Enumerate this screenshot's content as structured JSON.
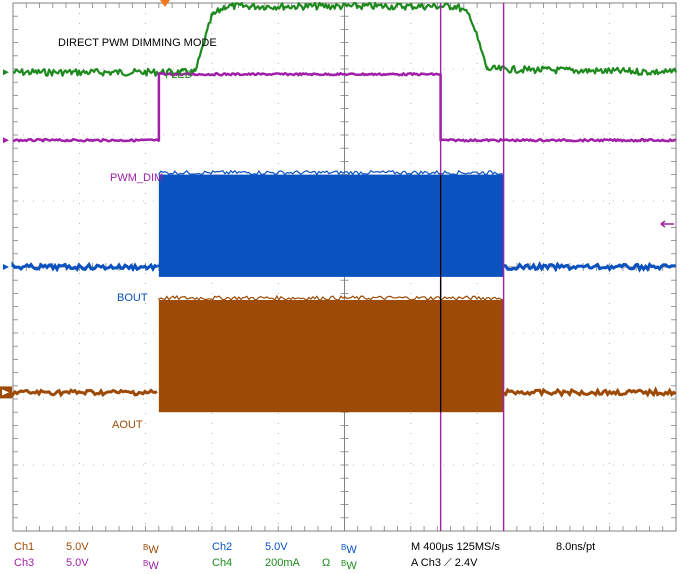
{
  "chart_data": {
    "type": "line",
    "title": "DIRECT PWM DIMMING MODE",
    "x_divisions": 10,
    "y_divisions": 8,
    "grid": true,
    "series": [
      {
        "name": "I LED",
        "channel": "Ch4",
        "color": "#1e8a1e",
        "baseline_div": 2.95,
        "x": [
          0,
          2.75,
          3.0,
          3.2,
          6.7,
          6.9,
          7.15,
          10
        ],
        "y": [
          0,
          0,
          0.85,
          1.0,
          1.0,
          0.85,
          0.05,
          0
        ]
      },
      {
        "name": "PWM_DIM",
        "channel": "Ch3",
        "color": "#a020a8",
        "baseline_div": 1.92,
        "x": [
          0,
          2.2,
          2.2,
          6.45,
          6.45,
          10
        ],
        "y": [
          0,
          0,
          1.0,
          1.0,
          0,
          0
        ]
      },
      {
        "name": "BOUT",
        "channel": "Ch2",
        "color": "#0a52c0",
        "baseline_div": 0.0,
        "band_div": [
          -0.15,
          1.4
        ],
        "x": [
          0,
          2.2,
          2.2,
          7.4,
          7.4,
          10
        ],
        "band": [
          false,
          false,
          true,
          true,
          false,
          false
        ]
      },
      {
        "name": "AOUT",
        "channel": "Ch1",
        "color": "#9c4a06",
        "baseline_div": -1.9,
        "band_div": [
          -0.3,
          1.4
        ],
        "x": [
          0,
          2.2,
          2.2,
          7.4,
          7.4,
          10
        ],
        "band": [
          false,
          false,
          true,
          true,
          false,
          false
        ]
      }
    ]
  },
  "markers": {
    "cursor_color": "#a020a8",
    "cursor_positions_div": [
      6.45,
      7.4
    ],
    "trigger_arrow_color": "#f07820"
  },
  "status_bar": {
    "ch1": "Ch1",
    "ch1_scale": "5.0V",
    "ch1_bw": "W",
    "ch3": "Ch3",
    "ch3_scale": "5.0V",
    "ch3_bw": "W",
    "ch2": "Ch2",
    "ch2_scale": "5.0V",
    "ch2_bw": "W",
    "ch4": "Ch4",
    "ch4_scale": "200mA",
    "ch4_ohm": "Ω",
    "ch4_bw": "W",
    "bw_prefix": "B",
    "timebase": "M 400μs 125MS/s",
    "trigger": "A  Ch3  ⟋  2.4V",
    "record": "8.0ns/pt"
  },
  "colors": {
    "ch1": "#9c4a06",
    "ch2": "#0a52c0",
    "ch3": "#a020a8",
    "ch4": "#1e8a1e",
    "grid": "#808080",
    "text": "#000000"
  }
}
